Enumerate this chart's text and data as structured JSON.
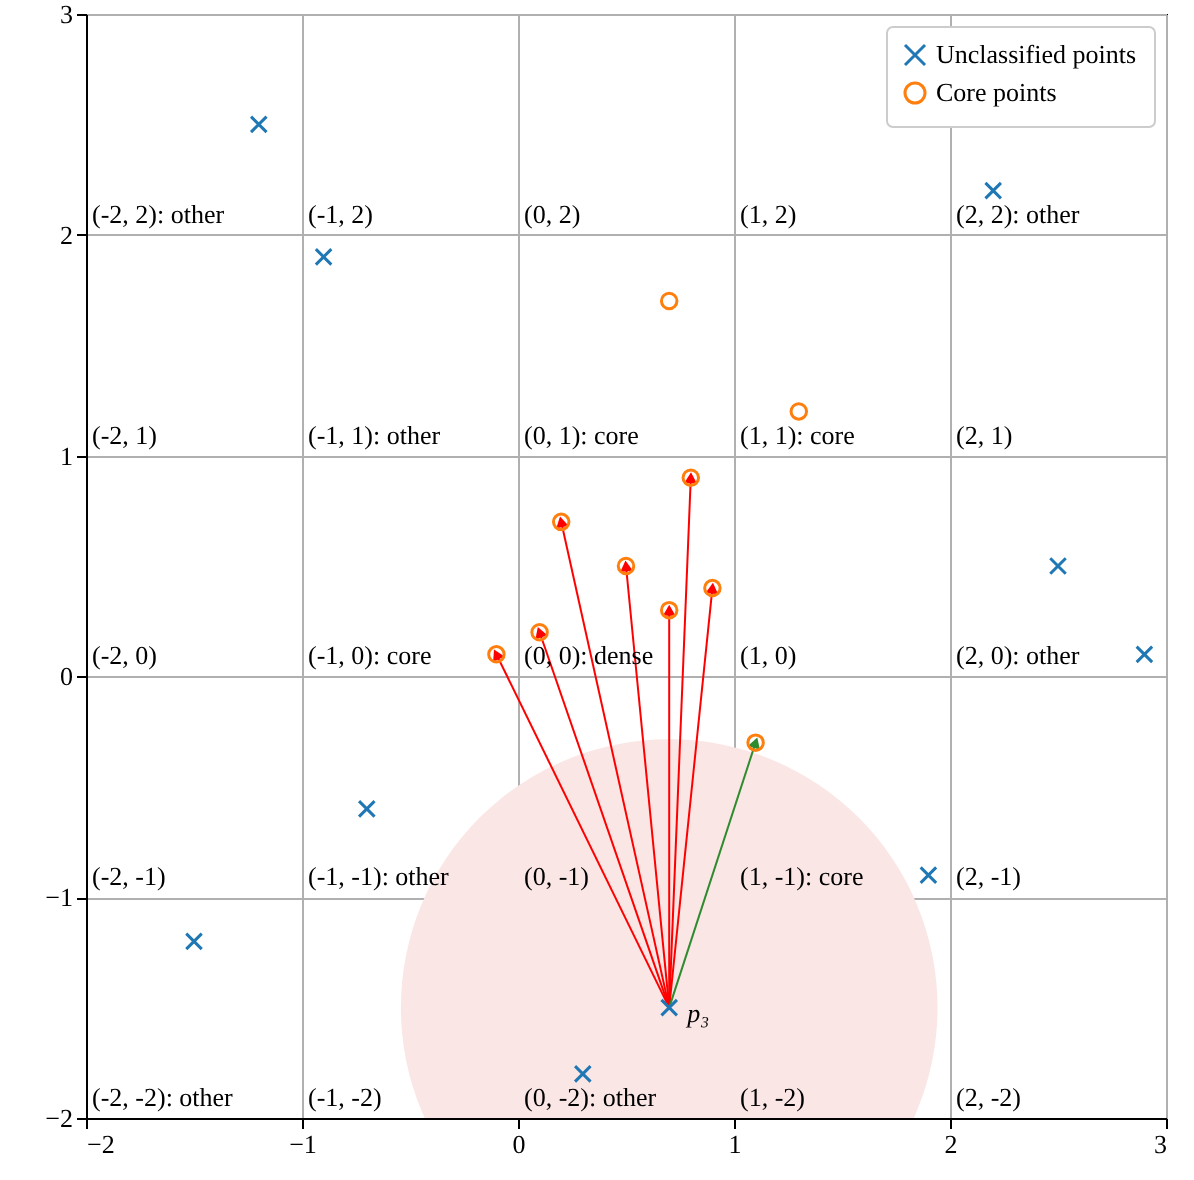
{
  "chart_data": {
    "type": "scatter",
    "xlim": [
      -2,
      3
    ],
    "ylim": [
      -2,
      3
    ],
    "xticks": [
      {
        "value": -2,
        "label": "−2"
      },
      {
        "value": -1,
        "label": "−1"
      },
      0,
      1,
      2,
      3
    ],
    "yticks": [
      {
        "value": -2,
        "label": "−2"
      },
      {
        "value": -1,
        "label": "−1"
      },
      0,
      1,
      2,
      3
    ],
    "grid": true,
    "legend": "top right",
    "series": [
      {
        "type": "bubble",
        "color": "#fbe6e6",
        "x": [
          0.7
        ],
        "values": [
          -1.5
        ],
        "sizes": [
          1
        ]
      },
      {
        "type": "line",
        "color": "#ff0000",
        "x": [
          0.7,
          -0.1
        ],
        "values": [
          -1.5,
          0.1
        ]
      },
      {
        "type": "line",
        "color": "#ff0000",
        "x": [
          0.7,
          0.1
        ],
        "values": [
          -1.5,
          0.2
        ]
      },
      {
        "type": "line",
        "color": "#ff0000",
        "x": [
          0.7,
          0.2
        ],
        "values": [
          -1.5,
          0.7
        ]
      },
      {
        "type": "line",
        "color": "#ff0000",
        "x": [
          0.7,
          0.5
        ],
        "values": [
          -1.5,
          0.5
        ]
      },
      {
        "type": "line",
        "color": "#ff0000",
        "x": [
          0.7,
          0.7
        ],
        "values": [
          -1.5,
          0.3
        ]
      },
      {
        "type": "line",
        "color": "#ff0000",
        "x": [
          0.7,
          0.8
        ],
        "values": [
          -1.5,
          0.9
        ]
      },
      {
        "type": "line",
        "color": "#ff0000",
        "x": [
          0.7,
          0.9
        ],
        "values": [
          -1.5,
          0.4
        ]
      },
      {
        "type": "line",
        "color": "#2e8b2e",
        "x": [
          0.7,
          1.1
        ],
        "values": [
          -1.5,
          -0.3
        ]
      },
      {
        "name": "Unclassified points",
        "marker": "cross",
        "color": "#1f77b4",
        "x": [
          -1.2,
          -0.9,
          2.2,
          2.5,
          2.9,
          -0.7,
          -1.5,
          1.9,
          0.7,
          0.3
        ],
        "values": [
          2.5,
          1.9,
          2.2,
          0.5,
          0.1,
          -0.6,
          -1.2,
          -0.9,
          -1.5,
          -1.8
        ]
      },
      {
        "name": "Core points",
        "marker": "circle",
        "color": "#ff7f0e",
        "x": [
          0.7,
          1.3,
          0.8,
          0.2,
          0.5,
          0.7,
          0.9,
          0.1,
          -0.1,
          1.1
        ],
        "values": [
          1.7,
          1.2,
          0.9,
          0.7,
          0.5,
          0.3,
          0.4,
          0.2,
          0.1,
          -0.3
        ]
      }
    ],
    "annotations": [
      "(-2, 2): other",
      "(-1, 2)",
      "(0, 2)",
      "(1, 2)",
      "(2, 2): other",
      "(-2, 1)",
      "(-1, 1): other",
      "(0, 1): core",
      "(1, 1): core",
      "(2, 1)",
      "(-2, 0)",
      "(-1, 0): core",
      "(0, 0): dense",
      "(1, 0)",
      "(2, 0): other",
      "(-2, -1)",
      "(-1, -1): other",
      "(0, -1)",
      "(1, -1): core",
      "(2, -1)",
      "(-2, -2): other",
      "(-1, -2)",
      "(0, -2): other",
      "(1, -2)",
      "(2, -2)",
      {
        "text": "p₃",
        "x": 0.7,
        "y": -1.5
      }
    ]
  }
}
